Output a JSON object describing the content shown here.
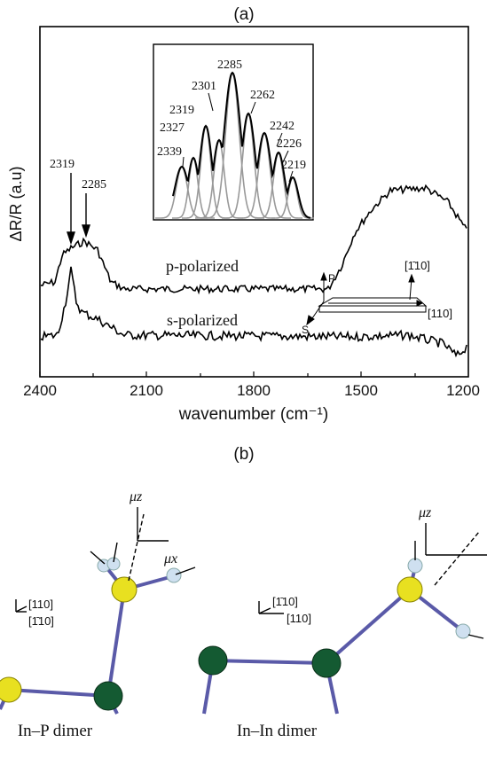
{
  "figure": {
    "panel_a": {
      "label": "(a)",
      "ylabel": "ΔR/R  (a.u)",
      "xlabel": "wavenumber (cm⁻¹)",
      "xticks": [
        "2400",
        "2100",
        "1800",
        "1500",
        "1200"
      ],
      "inset_labels": [
        "2285",
        "2301",
        "2262",
        "2319",
        "2327",
        "2242",
        "2339",
        "2226",
        "2219"
      ],
      "arrow_labels": [
        "2319",
        "2285"
      ],
      "curve_labels": [
        "p-polarized",
        "s-polarized"
      ],
      "geometry_labels": [
        "P",
        "S",
        "[1̄10]",
        "[110]"
      ]
    },
    "panel_b": {
      "label": "(b)",
      "left_axes": [
        "[110]",
        "[1̄10]"
      ],
      "right_axes": [
        "[1̄10]",
        "[110]"
      ],
      "dipoles": [
        "μz",
        "μx",
        "μz"
      ],
      "captions": [
        "In–P dimer",
        "In–In dimer"
      ]
    }
  }
}
